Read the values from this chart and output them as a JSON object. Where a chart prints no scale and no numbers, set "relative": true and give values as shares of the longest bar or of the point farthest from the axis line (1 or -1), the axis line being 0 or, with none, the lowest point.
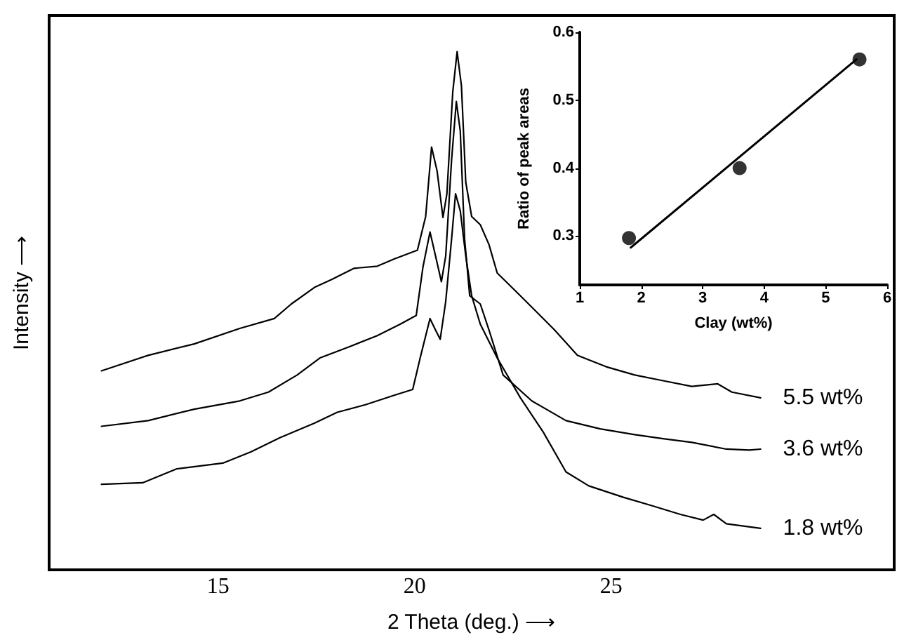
{
  "chart_data": [
    {
      "type": "line",
      "relative": true,
      "xlabel": "2 Theta (deg.) ⟶",
      "ylabel": "Intensity ⟶",
      "xlim": [
        10.7,
        32.2
      ],
      "xticks": [
        15,
        20,
        25
      ],
      "grid": false,
      "legend": false,
      "marker": "none",
      "line_style": "solid",
      "series": [
        {
          "name": "5.5 wt%",
          "color": "#000000",
          "x": [
            12.03,
            13.22,
            14.39,
            15.55,
            16.43,
            16.86,
            17.45,
            17.88,
            18.46,
            19.05,
            19.48,
            20.07,
            20.28,
            20.43,
            20.57,
            20.72,
            20.82,
            20.97,
            21.08,
            21.19,
            21.3,
            21.45,
            21.67,
            21.89,
            22.1,
            22.69,
            23.56,
            24.14,
            24.87,
            25.6,
            26.32,
            27.05,
            27.71,
            28.07,
            28.8
          ],
          "values": [
            0.384,
            0.414,
            0.436,
            0.466,
            0.485,
            0.513,
            0.545,
            0.56,
            0.582,
            0.586,
            0.6,
            0.617,
            0.682,
            0.816,
            0.77,
            0.68,
            0.726,
            0.923,
            1,
            0.934,
            0.748,
            0.682,
            0.666,
            0.628,
            0.573,
            0.529,
            0.463,
            0.414,
            0.392,
            0.376,
            0.365,
            0.354,
            0.359,
            0.343,
            0.332
          ]
        },
        {
          "name": "3.6 wt%",
          "color": "#000000",
          "x": [
            12.03,
            13.22,
            14.39,
            15.55,
            16.28,
            17.01,
            17.59,
            18.32,
            19.05,
            19.63,
            20.04,
            20.21,
            20.39,
            20.53,
            20.68,
            20.79,
            20.94,
            21.06,
            21.16,
            21.27,
            21.4,
            21.67,
            21.89,
            22.25,
            22.98,
            23.85,
            24.72,
            25.6,
            26.32,
            27.05,
            27.93,
            28.51,
            28.8
          ],
          "values": [
            0.277,
            0.288,
            0.31,
            0.326,
            0.343,
            0.376,
            0.409,
            0.43,
            0.452,
            0.474,
            0.491,
            0.584,
            0.652,
            0.606,
            0.556,
            0.606,
            0.792,
            0.904,
            0.847,
            0.639,
            0.529,
            0.513,
            0.463,
            0.376,
            0.326,
            0.288,
            0.272,
            0.261,
            0.253,
            0.246,
            0.233,
            0.231,
            0.233
          ]
        },
        {
          "name": "1.8 wt%",
          "color": "#000000",
          "x": [
            12.03,
            13.08,
            13.95,
            15.12,
            15.84,
            16.57,
            17.45,
            18.03,
            18.76,
            19.48,
            19.95,
            20.14,
            20.39,
            20.53,
            20.65,
            20.79,
            20.94,
            21.04,
            21.16,
            21.3,
            21.45,
            21.67,
            22.1,
            22.69,
            23.27,
            23.85,
            24.43,
            25.31,
            26.03,
            26.76,
            27.34,
            27.61,
            27.93,
            28.8
          ],
          "values": [
            0.165,
            0.168,
            0.195,
            0.206,
            0.228,
            0.255,
            0.283,
            0.304,
            0.319,
            0.337,
            0.348,
            0.409,
            0.485,
            0.463,
            0.445,
            0.518,
            0.639,
            0.726,
            0.693,
            0.606,
            0.529,
            0.474,
            0.409,
            0.332,
            0.266,
            0.189,
            0.162,
            0.14,
            0.124,
            0.107,
            0.096,
            0.107,
            0.089,
            0.08
          ]
        }
      ]
    },
    {
      "type": "scatter",
      "xlabel": "Clay (wt%)",
      "ylabel": "Ratio of peak areas",
      "xlim": [
        1,
        6
      ],
      "xticks": [
        1,
        2,
        3,
        4,
        5,
        6
      ],
      "ylim": [
        0.228,
        0.6
      ],
      "yticks": [
        0.3,
        0.4,
        0.5,
        0.6
      ],
      "grid": false,
      "legend": false,
      "marker": "circle",
      "series": [
        {
          "color": "#000000",
          "x": [
            1.8,
            3.6,
            5.55
          ],
          "values": [
            0.297,
            0.4,
            0.56
          ]
        },
        {
          "type": "line",
          "color": "#000000",
          "marker": "none",
          "x": [
            1.83,
            5.5
          ],
          "values": [
            0.283,
            0.56
          ]
        }
      ]
    }
  ]
}
